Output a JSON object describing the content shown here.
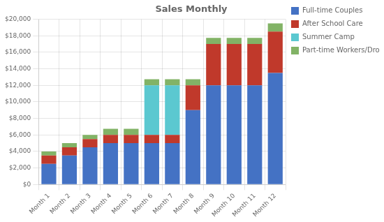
{
  "chart_data": {
    "type": "bar",
    "title": "Sales Monthly",
    "categories": [
      "Month 1",
      "Month 2",
      "Month 3",
      "Month 4",
      "Month 5",
      "Month 6",
      "Month 7",
      "Month 8",
      "Month 9",
      "Month 10",
      "Month 11",
      "Month 12"
    ],
    "series": [
      {
        "name": "Full-time Couples",
        "color": "#4472C4",
        "values": [
          2500,
          3500,
          4500,
          5000,
          5000,
          5000,
          5000,
          9000,
          12000,
          12000,
          12000,
          13500
        ]
      },
      {
        "name": "After School Care",
        "color": "#C0392B",
        "values": [
          1000,
          1000,
          1000,
          1000,
          1000,
          1000,
          1000,
          3000,
          5000,
          5000,
          5000,
          5000
        ]
      },
      {
        "name": "Summer Camp",
        "color": "#5BC8D0",
        "values": [
          0,
          0,
          0,
          0,
          0,
          6000,
          6000,
          0,
          0,
          0,
          0,
          0
        ]
      },
      {
        "name": "Part-time Workers/Drop-Ins",
        "color": "#82B366",
        "values": [
          500,
          500,
          500,
          750,
          750,
          750,
          750,
          750,
          750,
          750,
          750,
          1000
        ]
      }
    ],
    "stacked": true,
    "ylim": [
      0,
      20000
    ],
    "yticks": [
      {
        "value": 0,
        "label": "$0"
      },
      {
        "value": 2000,
        "label": "$2,000"
      },
      {
        "value": 4000,
        "label": "$4,000"
      },
      {
        "value": 6000,
        "label": "$6,000"
      },
      {
        "value": 8000,
        "label": "$8,000"
      },
      {
        "value": 10000,
        "label": "$10,000"
      },
      {
        "value": 12000,
        "label": "$12,000"
      },
      {
        "value": 14000,
        "label": "$14,000"
      },
      {
        "value": 16000,
        "label": "$16,000"
      },
      {
        "value": 18000,
        "label": "$18,000"
      },
      {
        "value": 20000,
        "label": "$20,000"
      }
    ],
    "grid": true,
    "legend": "right"
  }
}
